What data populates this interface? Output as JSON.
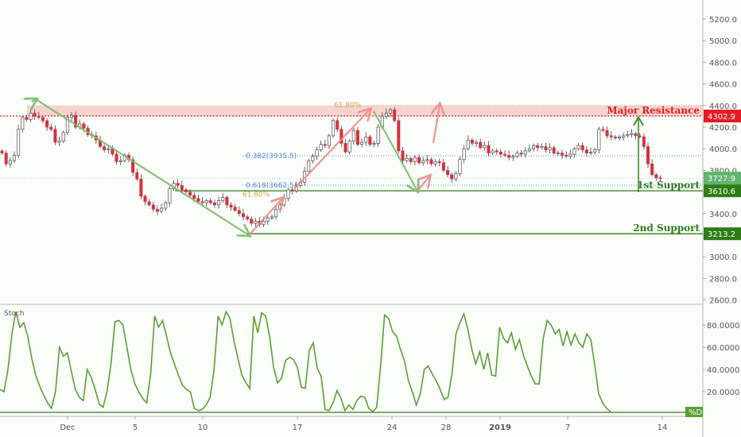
{
  "chart_data": [
    {
      "type": "candlestick",
      "title": "",
      "ylim": [
        2600,
        5300
      ],
      "y_ticks": [
        "5200.0",
        "5000.0",
        "4800.0",
        "4600.0",
        "4400.0",
        "4200.0",
        "4000.0",
        "3800.0",
        "3600.0",
        "3400.0",
        "3200.0",
        "3000.0",
        "2800.0",
        "2600.0"
      ],
      "y_tick_values": [
        5200,
        5000,
        4800,
        4600,
        4400,
        4200,
        4000,
        3800,
        3600,
        3400,
        3200,
        3000,
        2800,
        2600
      ],
      "x_ticks": [
        "Dec",
        "5",
        "10",
        "17",
        "24",
        "28",
        "2019",
        "7",
        "14"
      ],
      "x_tick_days": [
        3,
        8,
        13,
        20,
        27,
        31,
        35,
        40,
        47
      ],
      "x_range_days": [
        -2,
        50
      ],
      "last_price": 3727.9,
      "levels": [
        {
          "name": "Major Resistance",
          "value": 4302.9,
          "label": "4302.9",
          "color": "#e31b23"
        },
        {
          "name": "1st Support",
          "value": 3610.6,
          "label": "3610.6",
          "color": "#2e7d16"
        },
        {
          "name": "2nd Support",
          "value": 3213.2,
          "label": "3213.2",
          "color": "#2e7d16"
        }
      ],
      "last_price_label": "3727.9",
      "resistance_zone": [
        4302.9,
        4400
      ],
      "fib_levels": [
        {
          "label": "0.382(3935.5)",
          "value": 3935.5
        },
        {
          "label": "0.618(3662.5)",
          "value": 3662.5
        },
        {
          "label": "61.80%",
          "value": 4400
        },
        {
          "label": "61.80%",
          "value": 3600
        }
      ],
      "closes": [
        3960,
        3860,
        3890,
        3940,
        4180,
        4290,
        4270,
        4330,
        4300,
        4290,
        4260,
        4200,
        4180,
        4060,
        4070,
        4150,
        4290,
        4310,
        4200,
        4230,
        4190,
        4130,
        4120,
        4080,
        4020,
        3990,
        4000,
        3950,
        3880,
        3890,
        3940,
        3900,
        3780,
        3720,
        3560,
        3510,
        3480,
        3440,
        3420,
        3450,
        3500,
        3630,
        3680,
        3660,
        3620,
        3600,
        3570,
        3540,
        3510,
        3500,
        3520,
        3500,
        3480,
        3520,
        3550,
        3480,
        3460,
        3430,
        3400,
        3370,
        3350,
        3310,
        3330,
        3300,
        3330,
        3360,
        3370,
        3440,
        3480,
        3540,
        3620,
        3610,
        3660,
        3690,
        3790,
        3890,
        3930,
        3990,
        4040,
        4030,
        4120,
        4260,
        4180,
        4050,
        3970,
        4070,
        4170,
        4040,
        4060,
        4110,
        4040,
        4050,
        4200,
        4300,
        4330,
        4360,
        4260,
        3980,
        3890,
        3910,
        3880,
        3920,
        3870,
        3890,
        3900,
        3860,
        3880,
        3870,
        3800,
        3760,
        3720,
        3770,
        3900,
        4000,
        4080,
        4050,
        4060,
        4010,
        4030,
        3960,
        3980,
        3970,
        3950,
        3940,
        3920,
        3930,
        3960,
        3950,
        3980,
        4000,
        4030,
        4010,
        4020,
        3990,
        4010,
        3960,
        3960,
        3940,
        3930,
        3950,
        4000,
        4030,
        3990,
        3960,
        3970,
        3990,
        4180,
        4170,
        4120,
        4110,
        4100,
        4110,
        4120,
        4130,
        4140,
        4120,
        4110,
        4020,
        3860,
        3760,
        3730,
        3727.9
      ]
    },
    {
      "type": "line",
      "title": "Stoch",
      "ylim": [
        0,
        100
      ],
      "y_ticks": [
        "80.0000",
        "60.0000",
        "40.0000",
        "20.0000"
      ],
      "y_tick_values": [
        80,
        60,
        40,
        20
      ],
      "series": [
        {
          "name": "%D",
          "values": [
            22,
            20,
            40,
            72,
            92,
            78,
            82,
            70,
            50,
            35,
            25,
            17,
            10,
            5,
            20,
            60,
            52,
            55,
            38,
            22,
            15,
            12,
            40,
            33,
            22,
            9,
            6,
            20,
            45,
            83,
            84,
            80,
            60,
            40,
            27,
            20,
            14,
            10,
            36,
            88,
            78,
            84,
            70,
            55,
            45,
            35,
            26,
            22,
            20,
            5,
            3,
            4,
            8,
            15,
            40,
            88,
            80,
            92,
            86,
            66,
            50,
            35,
            28,
            23,
            88,
            73,
            91,
            88,
            70,
            42,
            28,
            32,
            48,
            51,
            49,
            42,
            24,
            23,
            57,
            64,
            41,
            34,
            4,
            3,
            10,
            21,
            14,
            3,
            8,
            4,
            12,
            16,
            15,
            5,
            2,
            6,
            44,
            89,
            86,
            74,
            70,
            58,
            48,
            30,
            20,
            8,
            18,
            40,
            43,
            36,
            30,
            22,
            13,
            15,
            36,
            72,
            82,
            90,
            76,
            58,
            45,
            56,
            40,
            55,
            35,
            34,
            78,
            68,
            64,
            73,
            58,
            67,
            53,
            43,
            34,
            27,
            27,
            68,
            84,
            80,
            72,
            76,
            61,
            74,
            62,
            72,
            64,
            60,
            72,
            67,
            44,
            18,
            10,
            5,
            2
          ]
        }
      ]
    }
  ],
  "price_axis_ticks_color": "#555555",
  "colors": {
    "bull": "#ffffff",
    "bear": "#d5313f",
    "wick": "#444444",
    "arrow_green": "#7dbb6a",
    "arrow_red": "#ee8a8a",
    "stoch_line": "#5c9e33",
    "resistance_zone": "#f5c8c0"
  },
  "legend_label": "%D"
}
